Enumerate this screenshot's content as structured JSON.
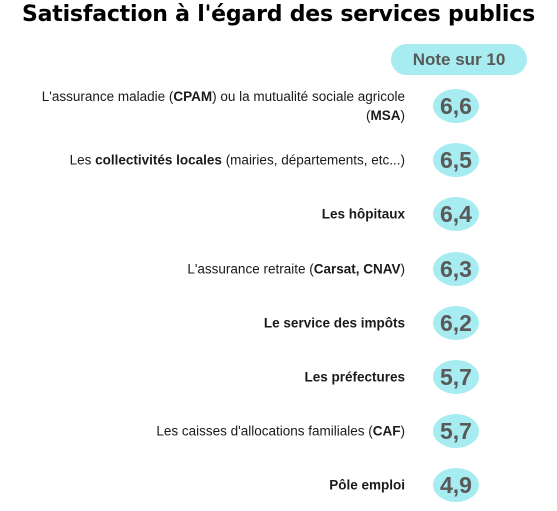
{
  "title": "Satisfaction à l'égard des services publics",
  "score_header": "Note sur 10",
  "colors": {
    "bubble": "#a7ecf0",
    "score_text": "#595959"
  },
  "chart_data": {
    "type": "table",
    "title": "Satisfaction à l'égard des services publics",
    "value_header": "Note sur 10",
    "rows": [
      {
        "segments": [
          {
            "text": "L'assurance maladie (",
            "bold": false
          },
          {
            "text": "CPAM",
            "bold": true
          },
          {
            "text": ") ou la mutualité sociale agricole (",
            "bold": false
          },
          {
            "text": "MSA",
            "bold": true
          },
          {
            "text": ")",
            "bold": false
          }
        ],
        "value": 6.6,
        "display": "6,6"
      },
      {
        "segments": [
          {
            "text": "Les ",
            "bold": false
          },
          {
            "text": "collectivités locales",
            "bold": true
          },
          {
            "text": " (mairies, départements, etc...)",
            "bold": false
          }
        ],
        "value": 6.5,
        "display": "6,5"
      },
      {
        "segments": [
          {
            "text": "Les hôpitaux",
            "bold": true
          }
        ],
        "value": 6.4,
        "display": "6,4"
      },
      {
        "segments": [
          {
            "text": "L'assurance retraite (",
            "bold": false
          },
          {
            "text": "Carsat, CNAV",
            "bold": true
          },
          {
            "text": ")",
            "bold": false
          }
        ],
        "value": 6.3,
        "display": "6,3"
      },
      {
        "segments": [
          {
            "text": "Le service des impôts",
            "bold": true
          }
        ],
        "value": 6.2,
        "display": "6,2"
      },
      {
        "segments": [
          {
            "text": "Les préfectures",
            "bold": true
          }
        ],
        "value": 5.7,
        "display": "5,7"
      },
      {
        "segments": [
          {
            "text": "Les caisses d'allocations familiales (",
            "bold": false
          },
          {
            "text": "CAF",
            "bold": true
          },
          {
            "text": ")",
            "bold": false
          }
        ],
        "value": 5.7,
        "display": "5,7"
      },
      {
        "segments": [
          {
            "text": "Pôle emploi",
            "bold": true
          }
        ],
        "value": 4.9,
        "display": "4,9"
      }
    ]
  }
}
